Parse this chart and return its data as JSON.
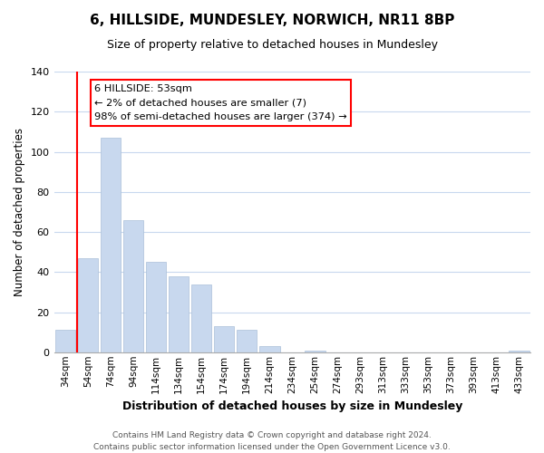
{
  "title": "6, HILLSIDE, MUNDESLEY, NORWICH, NR11 8BP",
  "subtitle": "Size of property relative to detached houses in Mundesley",
  "xlabel": "Distribution of detached houses by size in Mundesley",
  "ylabel": "Number of detached properties",
  "bar_labels": [
    "34sqm",
    "54sqm",
    "74sqm",
    "94sqm",
    "114sqm",
    "134sqm",
    "154sqm",
    "174sqm",
    "194sqm",
    "214sqm",
    "234sqm",
    "254sqm",
    "274sqm",
    "293sqm",
    "313sqm",
    "333sqm",
    "353sqm",
    "373sqm",
    "393sqm",
    "413sqm",
    "433sqm"
  ],
  "bar_values": [
    11,
    47,
    107,
    66,
    45,
    38,
    34,
    13,
    11,
    3,
    0,
    1,
    0,
    0,
    0,
    0,
    0,
    0,
    0,
    0,
    1
  ],
  "bar_color": "#c8d8ee",
  "bar_edge_color": "#aabfd8",
  "ylim": [
    0,
    140
  ],
  "yticks": [
    0,
    20,
    40,
    60,
    80,
    100,
    120,
    140
  ],
  "red_line_x": 0.5,
  "annotation_title": "6 HILLSIDE: 53sqm",
  "annotation_line1": "← 2% of detached houses are smaller (7)",
  "annotation_line2": "98% of semi-detached houses are larger (374) →",
  "footer_line1": "Contains HM Land Registry data © Crown copyright and database right 2024.",
  "footer_line2": "Contains public sector information licensed under the Open Government Licence v3.0.",
  "background_color": "#ffffff",
  "grid_color": "#c8d8ee"
}
